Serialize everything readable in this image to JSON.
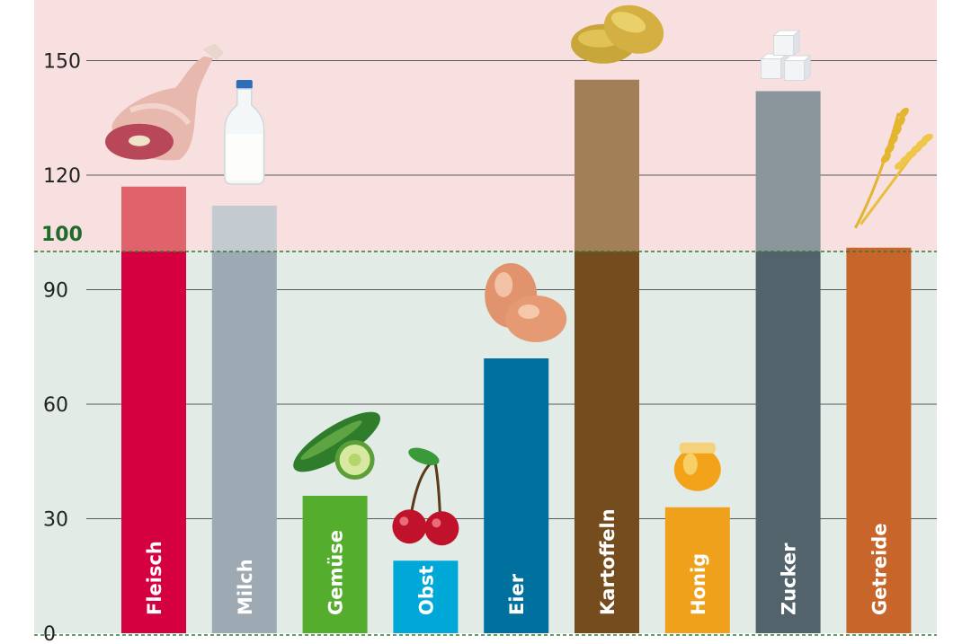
{
  "chart_data": {
    "type": "bar",
    "categories": [
      "Fleisch",
      "Milch",
      "Gemüse",
      "Obst",
      "Eier",
      "Kartoffeln",
      "Honig",
      "Zucker",
      "Getreide"
    ],
    "values": [
      117,
      112,
      36,
      19,
      72,
      145,
      33,
      142,
      101
    ],
    "reference_value": 100,
    "reference_label": "100",
    "y_ticks": [
      0,
      30,
      60,
      90,
      120,
      150
    ],
    "ylim": [
      0,
      163
    ],
    "grid": true,
    "title": "",
    "xlabel": "",
    "ylabel": "",
    "icons": [
      "meat-leg-icon",
      "milk-bottle-icon",
      "cucumber-icon",
      "cherries-icon",
      "eggs-icon",
      "potatoes-icon",
      "honey-jar-icon",
      "sugar-cubes-icon",
      "wheat-icon"
    ],
    "colors": {
      "bars": [
        "#d4003f",
        "#9eaab3",
        "#55ad2e",
        "#00a8d8",
        "#00709e",
        "#754c1e",
        "#f0a11c",
        "#52636c",
        "#c8652a"
      ],
      "bars_above": [
        "#e0636b",
        "#c4cbd0",
        "#55ad2e",
        "#00a8d8",
        "#00709e",
        "#a27f56",
        "#f0a11c",
        "#8b969c",
        "#c8652a"
      ],
      "below_background": "#e2ebe6",
      "above_background": "#f7e0df",
      "reference_line": "#2e7d32"
    }
  }
}
